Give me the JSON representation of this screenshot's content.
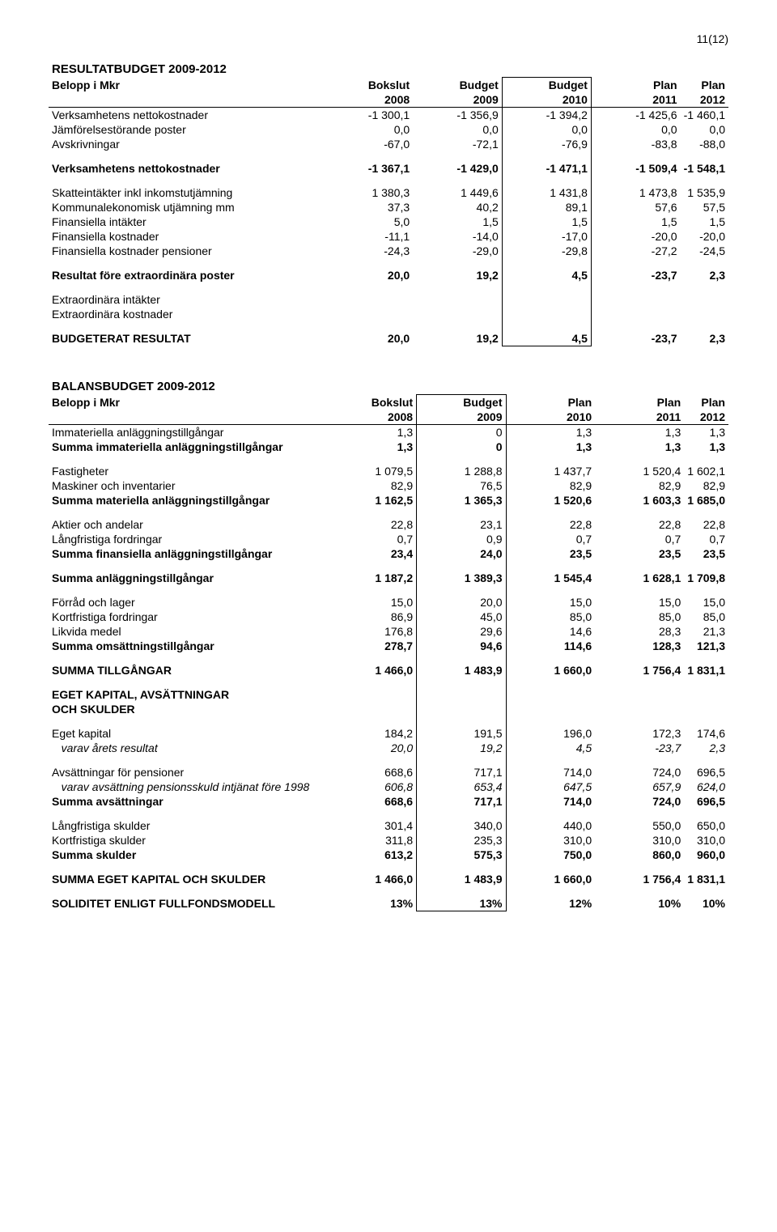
{
  "page_number": "11(12)",
  "resultat": {
    "title": "RESULTATBUDGET 2009-2012",
    "header_row1": [
      "Belopp i Mkr",
      "Bokslut",
      "Budget",
      "Budget",
      "Plan",
      "Plan"
    ],
    "header_row2": [
      "",
      "2008",
      "2009",
      "2010",
      "2011",
      "2012"
    ],
    "rows": [
      {
        "label": "Verksamhetens nettokostnader",
        "v": [
          "-1 300,1",
          "-1 356,9",
          "-1 394,2",
          "-1 425,6",
          "-1 460,1"
        ]
      },
      {
        "label": "Jämförelsestörande poster",
        "v": [
          "0,0",
          "0,0",
          "0,0",
          "0,0",
          "0,0"
        ]
      },
      {
        "label": "Avskrivningar",
        "v": [
          "-67,0",
          "-72,1",
          "-76,9",
          "-83,8",
          "-88,0"
        ]
      }
    ],
    "netto": {
      "label": "Verksamhetens nettokostnader",
      "v": [
        "-1 367,1",
        "-1 429,0",
        "-1 471,1",
        "-1 509,4",
        "-1 548,1"
      ]
    },
    "rows2": [
      {
        "label": "Skatteintäkter inkl inkomstutjämning",
        "v": [
          "1 380,3",
          "1 449,6",
          "1 431,8",
          "1 473,8",
          "1 535,9"
        ]
      },
      {
        "label": "Kommunalekonomisk utjämning mm",
        "v": [
          "37,3",
          "40,2",
          "89,1",
          "57,6",
          "57,5"
        ]
      },
      {
        "label": "Finansiella intäkter",
        "v": [
          "5,0",
          "1,5",
          "1,5",
          "1,5",
          "1,5"
        ]
      },
      {
        "label": "Finansiella kostnader",
        "v": [
          "-11,1",
          "-14,0",
          "-17,0",
          "-20,0",
          "-20,0"
        ]
      },
      {
        "label": "Finansiella kostnader pensioner",
        "v": [
          "-24,3",
          "-29,0",
          "-29,8",
          "-27,2",
          "-24,5"
        ]
      }
    ],
    "resultat_fore": {
      "label": "Resultat före extraordinära poster",
      "v": [
        "20,0",
        "19,2",
        "4,5",
        "-23,7",
        "2,3"
      ]
    },
    "extra": [
      {
        "label": "Extraordinära intäkter"
      },
      {
        "label": "Extraordinära kostnader"
      }
    ],
    "budgeterat": {
      "label": "BUDGETERAT RESULTAT",
      "v": [
        "20,0",
        "19,2",
        "4,5",
        "-23,7",
        "2,3"
      ]
    }
  },
  "balans": {
    "title": "BALANSBUDGET 2009-2012",
    "header_row1": [
      "Belopp i Mkr",
      "Bokslut",
      "Budget",
      "Plan",
      "Plan",
      "Plan"
    ],
    "header_row2": [
      "",
      "2008",
      "2009",
      "2010",
      "2011",
      "2012"
    ],
    "groups": [
      {
        "rows": [
          {
            "label": "Immateriella anläggningstillgångar",
            "v": [
              "1,3",
              "0",
              "1,3",
              "1,3",
              "1,3"
            ]
          },
          {
            "label": "Summa immateriella anläggningstillgångar",
            "v": [
              "1,3",
              "0",
              "1,3",
              "1,3",
              "1,3"
            ],
            "bold": true
          }
        ]
      },
      {
        "rows": [
          {
            "label": "Fastigheter",
            "v": [
              "1 079,5",
              "1 288,8",
              "1 437,7",
              "1 520,4",
              "1 602,1"
            ]
          },
          {
            "label": "Maskiner och inventarier",
            "v": [
              "82,9",
              "76,5",
              "82,9",
              "82,9",
              "82,9"
            ]
          },
          {
            "label": "Summa materiella anläggningstillgångar",
            "v": [
              "1 162,5",
              "1 365,3",
              "1 520,6",
              "1 603,3",
              "1 685,0"
            ],
            "bold": true
          }
        ]
      },
      {
        "rows": [
          {
            "label": "Aktier och andelar",
            "v": [
              "22,8",
              "23,1",
              "22,8",
              "22,8",
              "22,8"
            ]
          },
          {
            "label": "Långfristiga fordringar",
            "v": [
              "0,7",
              "0,9",
              "0,7",
              "0,7",
              "0,7"
            ]
          },
          {
            "label": "Summa finansiella anläggningstillgångar",
            "v": [
              "23,4",
              "24,0",
              "23,5",
              "23,5",
              "23,5"
            ],
            "bold": true
          }
        ]
      },
      {
        "rows": [
          {
            "label": "Summa anläggningstillgångar",
            "v": [
              "1 187,2",
              "1 389,3",
              "1 545,4",
              "1 628,1",
              "1 709,8"
            ],
            "bold": true
          }
        ]
      },
      {
        "rows": [
          {
            "label": "Förråd och lager",
            "v": [
              "15,0",
              "20,0",
              "15,0",
              "15,0",
              "15,0"
            ]
          },
          {
            "label": "Kortfristiga fordringar",
            "v": [
              "86,9",
              "45,0",
              "85,0",
              "85,0",
              "85,0"
            ]
          },
          {
            "label": "Likvida medel",
            "v": [
              "176,8",
              "29,6",
              "14,6",
              "28,3",
              "21,3"
            ]
          },
          {
            "label": "Summa omsättningstillgångar",
            "v": [
              "278,7",
              "94,6",
              "114,6",
              "128,3",
              "121,3"
            ],
            "bold": true
          }
        ]
      },
      {
        "rows": [
          {
            "label": "SUMMA TILLGÅNGAR",
            "v": [
              "1 466,0",
              "1 483,9",
              "1 660,0",
              "1 756,4",
              "1 831,1"
            ],
            "bold": true
          }
        ]
      },
      {
        "rows": [
          {
            "label": "EGET KAPITAL, AVSÄTTNINGAR",
            "bold": true
          },
          {
            "label": "OCH SKULDER",
            "bold": true
          }
        ]
      },
      {
        "rows": [
          {
            "label": "Eget kapital",
            "v": [
              "184,2",
              "191,5",
              "196,0",
              "172,3",
              "174,6"
            ]
          },
          {
            "label": "varav årets resultat",
            "v": [
              "20,0",
              "19,2",
              "4,5",
              "-23,7",
              "2,3"
            ],
            "italic": true,
            "indent": true
          }
        ]
      },
      {
        "rows": [
          {
            "label": "Avsättningar för pensioner",
            "v": [
              "668,6",
              "717,1",
              "714,0",
              "724,0",
              "696,5"
            ]
          },
          {
            "label": "varav avsättning pensionsskuld intjänat före 1998",
            "v": [
              "606,8",
              "653,4",
              "647,5",
              "657,9",
              "624,0"
            ],
            "italic": true,
            "indent": true
          },
          {
            "label": "Summa avsättningar",
            "v": [
              "668,6",
              "717,1",
              "714,0",
              "724,0",
              "696,5"
            ],
            "bold": true
          }
        ]
      },
      {
        "rows": [
          {
            "label": "Långfristiga skulder",
            "v": [
              "301,4",
              "340,0",
              "440,0",
              "550,0",
              "650,0"
            ]
          },
          {
            "label": "Kortfristiga skulder",
            "v": [
              "311,8",
              "235,3",
              "310,0",
              "310,0",
              "310,0"
            ]
          },
          {
            "label": "Summa skulder",
            "v": [
              "613,2",
              "575,3",
              "750,0",
              "860,0",
              "960,0"
            ],
            "bold": true
          }
        ]
      },
      {
        "rows": [
          {
            "label": "SUMMA EGET KAPITAL OCH SKULDER",
            "v": [
              "1 466,0",
              "1 483,9",
              "1 660,0",
              "1 756,4",
              "1 831,1"
            ],
            "bold": true
          }
        ]
      },
      {
        "rows": [
          {
            "label": "SOLIDITET ENLIGT FULLFONDSMODELL",
            "v": [
              "13%",
              "13%",
              "12%",
              "10%",
              "10%"
            ],
            "bold": true
          }
        ]
      }
    ]
  }
}
